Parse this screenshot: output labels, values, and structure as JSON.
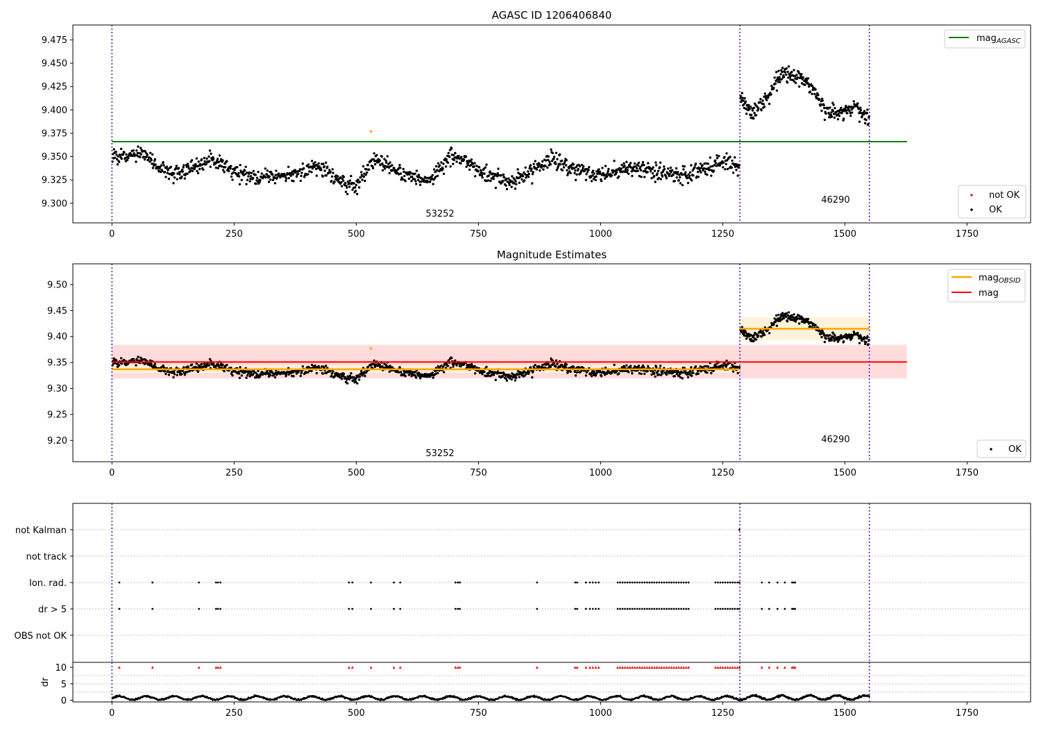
{
  "colors": {
    "ok": "#000000",
    "not_ok": "#e41a1c",
    "agasc_line": "#008000",
    "obsid_mag": "#ffa500",
    "mag_line": "#ff0000",
    "mag_band": "#ffd6d6",
    "obsid_band": "#fff1d6",
    "obs_boundary": "#6a0dad",
    "grid": "#b0b0b0"
  },
  "chart_data": [
    {
      "type": "scatter",
      "title": "AGASC ID 1206406840",
      "xlim": [
        -80,
        1880
      ],
      "ylim": [
        9.279,
        9.491
      ],
      "xticks": [
        0,
        250,
        500,
        750,
        1000,
        1250,
        1500,
        1750
      ],
      "yticks": [
        9.3,
        9.325,
        9.35,
        9.375,
        9.4,
        9.425,
        9.45,
        9.475
      ],
      "ytick_labels": [
        "9.300",
        "9.325",
        "9.350",
        "9.375",
        "9.400",
        "9.425",
        "9.450",
        "9.475"
      ],
      "mag_agasc": 9.366,
      "mag_agasc_x_range": [
        0,
        1627
      ],
      "observations": [
        {
          "obsid": "53252",
          "x_start": 0,
          "x_end": 1285,
          "label_x": 640,
          "mag_trend": [
            [
              0,
              9.349
            ],
            [
              60,
              9.354
            ],
            [
              120,
              9.33
            ],
            [
              200,
              9.346
            ],
            [
              280,
              9.328
            ],
            [
              360,
              9.33
            ],
            [
              420,
              9.34
            ],
            [
              470,
              9.322
            ],
            [
              500,
              9.318
            ],
            [
              540,
              9.348
            ],
            [
              600,
              9.33
            ],
            [
              650,
              9.326
            ],
            [
              700,
              9.352
            ],
            [
              760,
              9.332
            ],
            [
              820,
              9.322
            ],
            [
              900,
              9.348
            ],
            [
              950,
              9.335
            ],
            [
              1000,
              9.33
            ],
            [
              1060,
              9.338
            ],
            [
              1120,
              9.334
            ],
            [
              1180,
              9.33
            ],
            [
              1250,
              9.346
            ],
            [
              1285,
              9.338
            ]
          ]
        },
        {
          "obsid": "46290",
          "x_start": 1285,
          "x_end": 1550,
          "label_x": 1415,
          "mag_trend": [
            [
              1285,
              9.413
            ],
            [
              1310,
              9.396
            ],
            [
              1340,
              9.412
            ],
            [
              1370,
              9.44
            ],
            [
              1400,
              9.437
            ],
            [
              1430,
              9.425
            ],
            [
              1460,
              9.4
            ],
            [
              1490,
              9.398
            ],
            [
              1520,
              9.403
            ],
            [
              1550,
              9.388
            ]
          ]
        }
      ],
      "not_ok_points": [
        {
          "x": 530,
          "y": 9.377
        }
      ],
      "legend_upper": [
        "mag_AGASC"
      ],
      "legend_lower": [
        "not OK",
        "OK"
      ]
    },
    {
      "type": "scatter",
      "title": "Magnitude Estimates",
      "xlim": [
        -80,
        1880
      ],
      "ylim": [
        9.159,
        9.54
      ],
      "xticks": [
        0,
        250,
        500,
        750,
        1000,
        1250,
        1500,
        1750
      ],
      "yticks": [
        9.2,
        9.25,
        9.3,
        9.35,
        9.4,
        9.45,
        9.5
      ],
      "ytick_labels": [
        "9.20",
        "9.25",
        "9.30",
        "9.35",
        "9.40",
        "9.45",
        "9.50"
      ],
      "mag": 9.351,
      "mag_band": [
        9.319,
        9.384
      ],
      "mag_x_range": [
        0,
        1627
      ],
      "obsid_mags": [
        {
          "x_start": 0,
          "x_end": 1285,
          "mag": 9.337,
          "band": [
            9.33,
            9.345
          ]
        },
        {
          "x_start": 1285,
          "x_end": 1550,
          "mag": 9.415,
          "band": [
            9.393,
            9.437
          ]
        }
      ],
      "not_ok_points": [
        {
          "x": 530,
          "y": 9.377
        }
      ],
      "legend_upper": [
        "mag_OBSID",
        "mag"
      ],
      "legend_lower": [
        "OK"
      ]
    },
    {
      "type": "scatter",
      "title": "",
      "categories": [
        "not Kalman",
        "not track",
        "Ion. rad.",
        "dr > 5",
        "OBS not OK"
      ],
      "flag_x_values": [
        15,
        83,
        178,
        213,
        217,
        222,
        485,
        492,
        530,
        577,
        590,
        703,
        708,
        712,
        870,
        948,
        952,
        970,
        978,
        984,
        990,
        996,
        1035,
        1040,
        1045,
        1050,
        1055,
        1060,
        1065,
        1070,
        1075,
        1080,
        1085,
        1090,
        1095,
        1100,
        1105,
        1110,
        1115,
        1120,
        1125,
        1130,
        1135,
        1140,
        1145,
        1150,
        1155,
        1160,
        1165,
        1170,
        1175,
        1180,
        1235,
        1240,
        1245,
        1250,
        1255,
        1260,
        1265,
        1270,
        1275,
        1280,
        1284,
        1330,
        1345,
        1362,
        1377,
        1392,
        1395,
        1398
      ],
      "not_kalman_x": [
        1284
      ]
    },
    {
      "type": "scatter",
      "ylabel": "dr",
      "xlim": [
        -80,
        1880
      ],
      "ylim": [
        -0.5,
        11.5
      ],
      "yticks": [
        0,
        5,
        10
      ],
      "xticks": [
        0,
        250,
        500,
        750,
        1000,
        1250,
        1500,
        1750
      ],
      "dr_threshold": 10,
      "dr_max": 2.5
    }
  ]
}
